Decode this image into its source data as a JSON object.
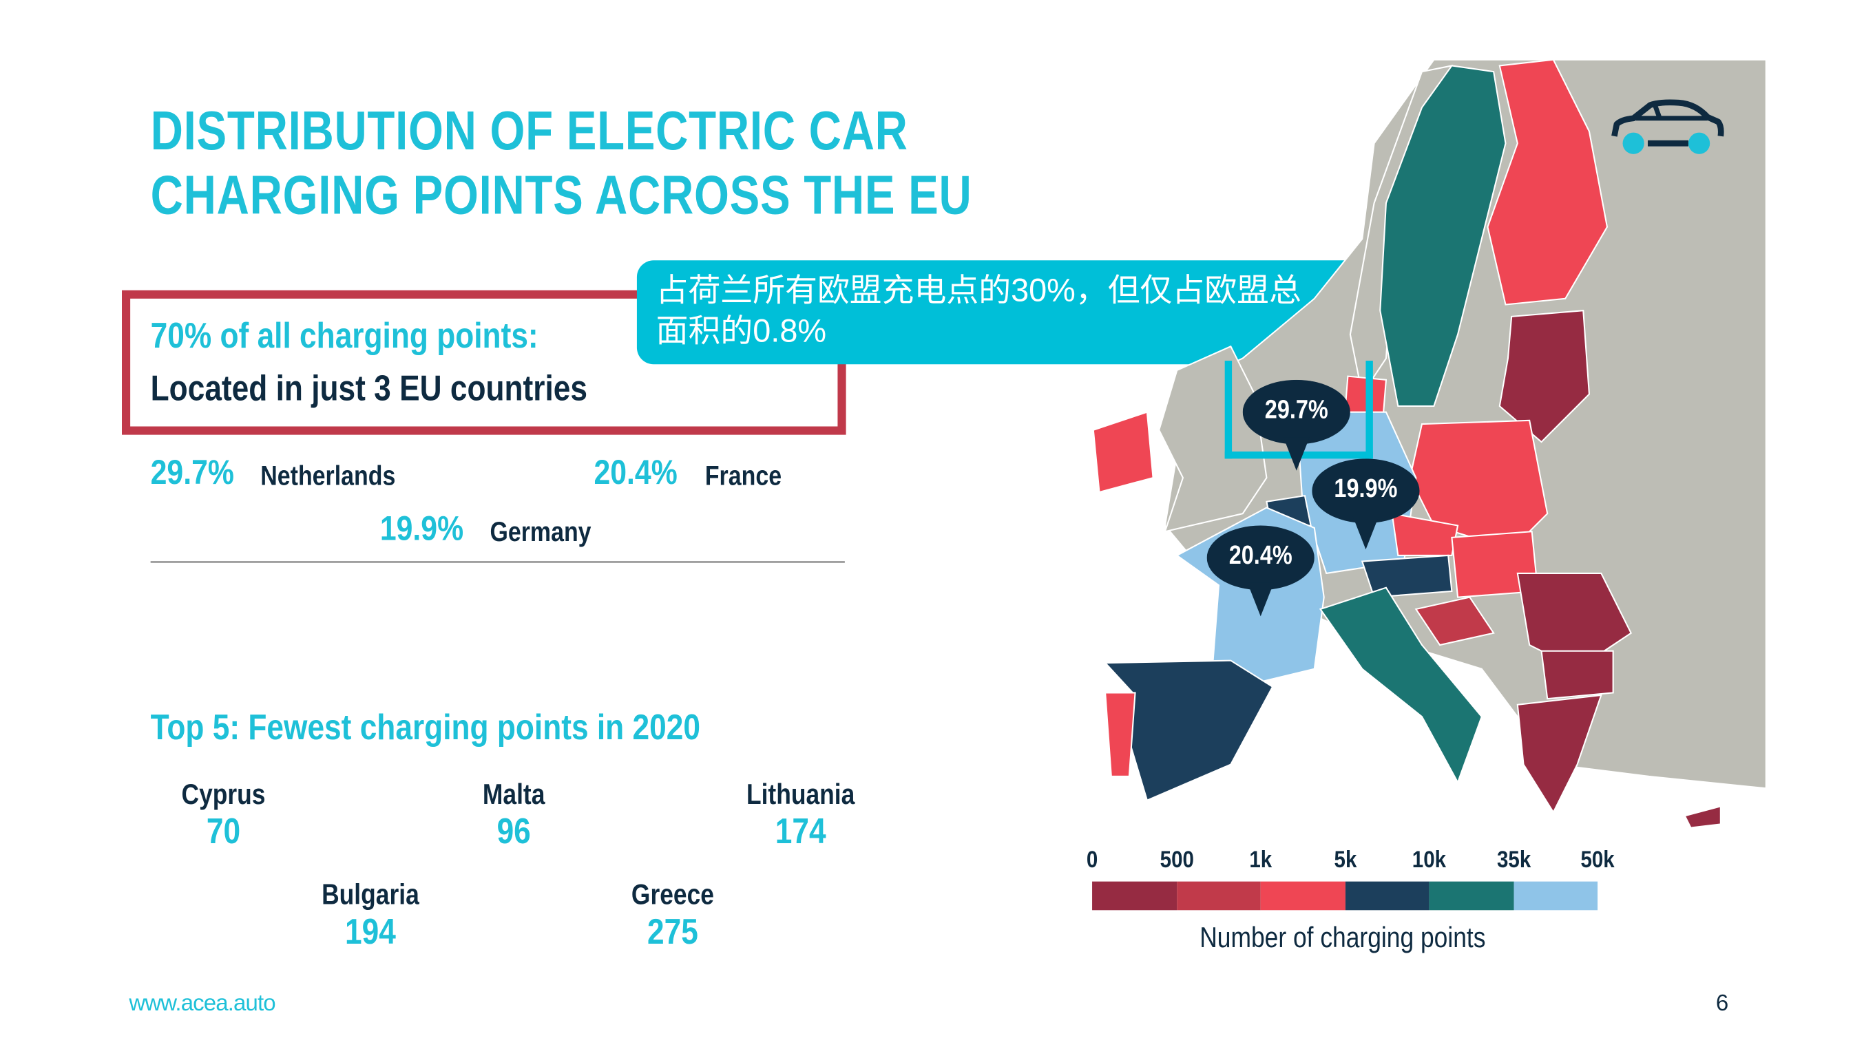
{
  "title": {
    "line1": "DISTRIBUTION OF ELECTRIC CAR",
    "line2": "CHARGING POINTS ACROSS THE EU"
  },
  "highlight_box": {
    "heading": "70% of all charging points:",
    "subheading": "Located in just 3 EU countries"
  },
  "callout": {
    "line1": "占荷兰所有欧盟充电点的30%，但仅占欧盟总",
    "line2": "面积的0.8%"
  },
  "top3": [
    {
      "pct": "29.7%",
      "country": "Netherlands"
    },
    {
      "pct": "20.4%",
      "country": "France"
    },
    {
      "pct": "19.9%",
      "country": "Germany"
    }
  ],
  "fewest": {
    "heading": "Top 5: Fewest charging points in 2020",
    "items": [
      {
        "country": "Cyprus",
        "value": "70"
      },
      {
        "country": "Malta",
        "value": "96"
      },
      {
        "country": "Lithuania",
        "value": "174"
      },
      {
        "country": "Bulgaria",
        "value": "194"
      },
      {
        "country": "Greece",
        "value": "275"
      }
    ]
  },
  "map_pins": [
    {
      "label": "29.7%",
      "country": "Netherlands"
    },
    {
      "label": "19.9%",
      "country": "Germany"
    },
    {
      "label": "20.4%",
      "country": "France"
    }
  ],
  "chart_data": {
    "type": "choropleth-map",
    "title": "DISTRIBUTION OF ELECTRIC CAR CHARGING POINTS ACROSS THE EU",
    "legend_title": "Number of charging points",
    "legend_ticks": [
      "0",
      "500",
      "1k",
      "5k",
      "10k",
      "35k",
      "50k"
    ],
    "legend_colors": [
      "#962b42",
      "#c13a4a",
      "#ef4654",
      "#1c3f5c",
      "#1b7572",
      "#8fc4e8"
    ],
    "no_data_color": "#bdbdb5",
    "share_of_eu_charging_points": {
      "Netherlands": 29.7,
      "France": 20.4,
      "Germany": 19.9
    }
  },
  "footer": {
    "url": "www.acea.auto",
    "page": "6"
  },
  "icons": {
    "car": "car-icon"
  }
}
